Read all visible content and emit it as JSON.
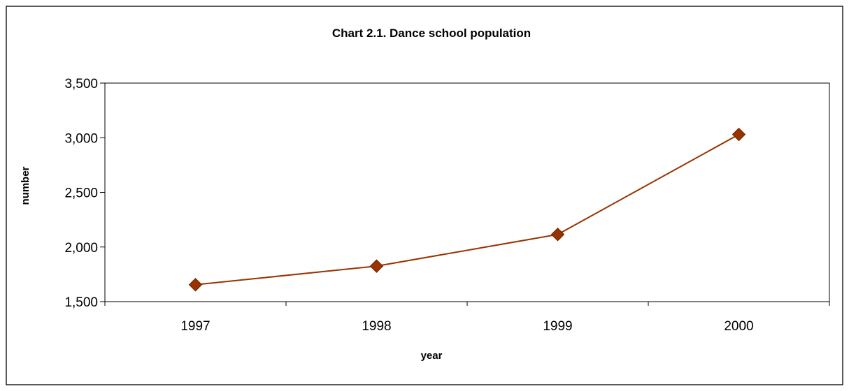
{
  "chart_data": {
    "type": "line",
    "title": "Chart 2.1.  Dance school population",
    "xlabel": "year",
    "ylabel": "number",
    "categories": [
      "1997",
      "1998",
      "1999",
      "2000"
    ],
    "series": [
      {
        "values": [
          1655,
          1825,
          2115,
          3030
        ]
      }
    ],
    "ylim": [
      1500,
      3500
    ],
    "yticks": [
      1500,
      2000,
      2500,
      3000,
      3500
    ],
    "ytick_labels": [
      "1,500",
      "2,000",
      "2,500",
      "3,000",
      "3,500"
    ],
    "marker": "diamond",
    "line_color": "#993300",
    "marker_color": "#993300",
    "grid": false,
    "legend": "none"
  }
}
